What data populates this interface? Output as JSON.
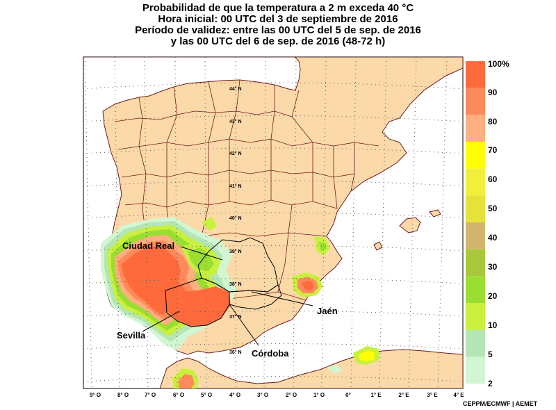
{
  "title": {
    "line1": "Probabilidad de que la temperatura a 2 m exceda 40 °C",
    "line2": "Hora inicial: 00 UTC del 3 de septiembre de 2016",
    "line3": "Período de validez: entre las 00 UTC del 5 de sep. de 2016",
    "line4": "y las 00 UTC del 6 de sep. de 2016 (48-72 h)"
  },
  "legend": {
    "labels": [
      "100%",
      "90",
      "80",
      "70",
      "60",
      "50",
      "40",
      "30",
      "20",
      "10",
      "5",
      "2"
    ],
    "colors": [
      "#ff6a3c",
      "#ff8a5a",
      "#ffaf80",
      "#ffff00",
      "#f0f03c",
      "#e6e23a",
      "#d2b46e",
      "#a8c83c",
      "#9ade32",
      "#c8f03c",
      "#b4e6b4",
      "#d2f5d2"
    ]
  },
  "lat_labels": [
    "44° N",
    "43° N",
    "42° N",
    "41° N",
    "40° N",
    "39° N",
    "38° N",
    "37° N",
    "36° N"
  ],
  "lon_labels": [
    "9° O",
    "8° O",
    "7° O",
    "6° O",
    "5° O",
    "4° O",
    "3° O",
    "2° O",
    "1° O",
    "0°",
    "1° E",
    "2° E",
    "3° E",
    "4° E"
  ],
  "cities": {
    "ciudad_real": "Ciudad Real",
    "jaen": "Jaén",
    "sevilla": "Sevilla",
    "cordoba": "Córdoba"
  },
  "credit": "CEPPM/ECMWF | AEMET",
  "colors": {
    "land": "#fcd9a8",
    "sea": "#ffffff",
    "border": "#6b1a1a",
    "grid": "#555555"
  }
}
